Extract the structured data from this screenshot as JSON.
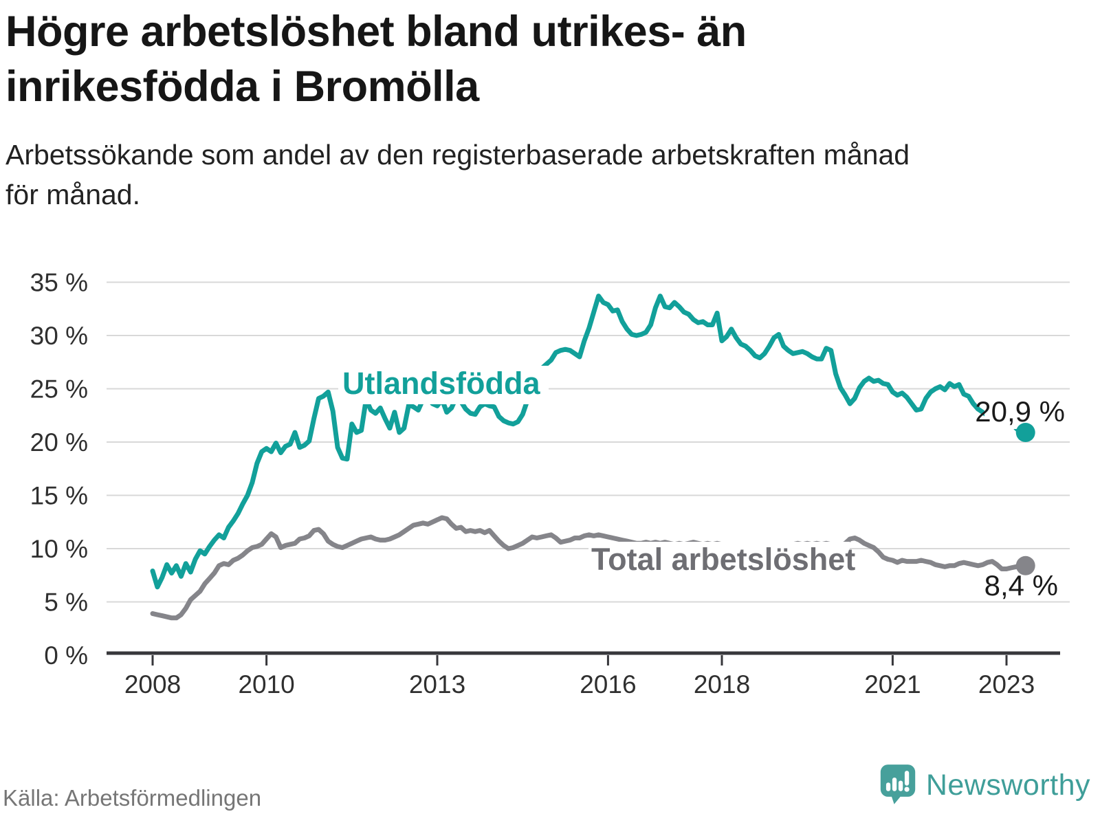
{
  "header": {
    "title_lines": [
      "Högre arbetslöshet bland utrikes- än",
      "inrikesfödda i Bromölla"
    ],
    "subtitle_lines": [
      "Arbetssökande som andel av den registerbaserade arbetskraften månad",
      "för månad."
    ]
  },
  "footer": {
    "source": "Källa: Arbetsförmedlingen",
    "brand_name": "Newsworthy",
    "brand_icon": "bar-chart-speech-bubble-icon"
  },
  "colors": {
    "teal": "#12a09a",
    "gray_line": "#85858a",
    "gray_label": "#6e6e73",
    "axis": "#37373b",
    "grid": "#d8d8d8",
    "tick_text": "#2f2f2f",
    "value_text": "#1a1a1a",
    "brand_teal": "#3f9e99",
    "background": "#ffffff"
  },
  "chart_data": {
    "type": "line",
    "title": "Högre arbetslöshet bland utrikes- än inrikesfödda i Bromölla",
    "subtitle": "Arbetssökande som andel av den registerbaserade arbetskraften månad för månad.",
    "x_unit": "month",
    "x_start_year": 2008,
    "x_end_label_values": {
      "Utlandsfödda": "20,9 %",
      "Total arbetslöshet": "8,4 %"
    },
    "x_tick_years": [
      2008,
      2010,
      2013,
      2016,
      2018,
      2021,
      2023
    ],
    "x_tick_labels": [
      "2008",
      "2010",
      "2013",
      "2016",
      "2018",
      "2021",
      "2023"
    ],
    "y_ticks": [
      0,
      5,
      10,
      15,
      20,
      25,
      30,
      35
    ],
    "y_tick_labels": [
      "0 %",
      "5 %",
      "10 %",
      "15 %",
      "20 %",
      "25 %",
      "30 %",
      "35 %"
    ],
    "ylim": [
      0,
      36.5
    ],
    "grid": true,
    "legend_position": "inline-labels",
    "series": [
      {
        "name": "Utlandsfödda",
        "color": "#12a09a",
        "end_label": "20,9 %",
        "end_value": 20.9,
        "values": [
          7.9,
          6.4,
          7.3,
          8.5,
          7.7,
          8.4,
          7.4,
          8.6,
          7.8,
          9.0,
          9.8,
          9.5,
          10.2,
          10.8,
          11.3,
          11.0,
          12.0,
          12.6,
          13.3,
          14.2,
          15.0,
          16.2,
          18.0,
          19.1,
          19.4,
          19.1,
          19.9,
          19.0,
          19.6,
          19.8,
          20.9,
          19.5,
          19.7,
          20.1,
          22.2,
          24.1,
          24.3,
          24.7,
          22.9,
          19.5,
          18.5,
          18.4,
          21.7,
          20.9,
          21.1,
          24.0,
          23.0,
          22.7,
          23.2,
          22.2,
          21.3,
          22.8,
          20.9,
          21.3,
          23.5,
          23.3,
          23.0,
          24.0,
          24.2,
          23.6,
          23.4,
          24.0,
          22.8,
          23.2,
          24.2,
          23.8,
          23.1,
          22.7,
          22.6,
          23.3,
          23.6,
          23.4,
          23.3,
          22.4,
          22.0,
          21.8,
          21.7,
          21.9,
          22.6,
          23.9,
          25.2,
          26.4,
          26.9,
          27.3,
          27.7,
          28.4,
          28.6,
          28.7,
          28.6,
          28.3,
          28.0,
          29.5,
          30.7,
          32.2,
          33.7,
          33.1,
          32.9,
          32.3,
          32.4,
          31.3,
          30.6,
          30.1,
          30.0,
          30.1,
          30.3,
          31.0,
          32.6,
          33.7,
          32.7,
          32.6,
          33.1,
          32.7,
          32.2,
          32.0,
          31.5,
          31.2,
          31.3,
          31.0,
          31.0,
          32.1,
          29.5,
          29.9,
          30.6,
          29.8,
          29.2,
          29.0,
          28.6,
          28.1,
          27.9,
          28.3,
          29.0,
          29.8,
          30.1,
          29.0,
          28.6,
          28.3,
          28.4,
          28.5,
          28.3,
          28.0,
          27.8,
          27.8,
          28.8,
          28.6,
          26.4,
          25.1,
          24.4,
          23.6,
          24.1,
          25.1,
          25.7,
          26.0,
          25.7,
          25.8,
          25.5,
          25.4,
          24.7,
          24.4,
          24.6,
          24.2,
          23.6,
          23.0,
          23.1,
          24.1,
          24.7,
          25.0,
          25.2,
          24.9,
          25.5,
          25.2,
          25.4,
          24.5,
          24.3,
          23.6,
          23.1,
          22.8,
          22.5,
          22.3,
          22.7,
          23.0,
          22.5,
          21.9,
          21.3,
          20.9
        ]
      },
      {
        "name": "Total arbetslöshet",
        "color": "#85858a",
        "end_label": "8,4 %",
        "end_value": 8.4,
        "values": [
          3.9,
          3.8,
          3.7,
          3.6,
          3.5,
          3.5,
          3.8,
          4.4,
          5.2,
          5.6,
          6.0,
          6.7,
          7.2,
          7.7,
          8.4,
          8.6,
          8.5,
          8.9,
          9.1,
          9.4,
          9.8,
          10.1,
          10.2,
          10.4,
          10.9,
          11.4,
          11.1,
          10.1,
          10.3,
          10.4,
          10.5,
          10.9,
          11.0,
          11.2,
          11.7,
          11.8,
          11.4,
          10.7,
          10.4,
          10.2,
          10.1,
          10.3,
          10.5,
          10.7,
          10.9,
          11.0,
          11.1,
          10.9,
          10.8,
          10.8,
          10.9,
          11.1,
          11.3,
          11.6,
          11.9,
          12.2,
          12.3,
          12.4,
          12.3,
          12.5,
          12.7,
          12.9,
          12.8,
          12.3,
          11.9,
          12.0,
          11.6,
          11.7,
          11.6,
          11.7,
          11.5,
          11.7,
          11.2,
          10.7,
          10.3,
          10.0,
          10.1,
          10.3,
          10.5,
          10.8,
          11.1,
          11.0,
          11.1,
          11.2,
          11.3,
          11.0,
          10.6,
          10.7,
          10.8,
          11.0,
          11.0,
          11.2,
          11.3,
          11.2,
          11.3,
          11.2,
          11.1,
          11.0,
          10.9,
          10.8,
          10.7,
          10.6,
          10.5,
          10.5,
          10.6,
          10.5,
          10.6,
          10.5,
          10.6,
          10.5,
          10.4,
          10.5,
          10.4,
          10.5,
          10.6,
          10.5,
          10.4,
          10.5,
          10.4,
          10.5,
          10.4,
          10.3,
          10.4,
          10.3,
          10.2,
          10.3,
          10.2,
          10.3,
          10.2,
          10.3,
          10.4,
          10.3,
          10.3,
          10.4,
          10.3,
          10.4,
          10.5,
          10.4,
          10.5,
          10.4,
          10.5,
          10.4,
          10.5,
          10.4,
          10.4,
          10.3,
          10.5,
          10.9,
          11.0,
          10.8,
          10.5,
          10.3,
          10.1,
          9.7,
          9.2,
          9.0,
          8.9,
          8.7,
          8.9,
          8.8,
          8.8,
          8.8,
          8.9,
          8.8,
          8.7,
          8.5,
          8.4,
          8.3,
          8.4,
          8.4,
          8.6,
          8.7,
          8.6,
          8.5,
          8.4,
          8.5,
          8.7,
          8.8,
          8.5,
          8.1,
          8.1,
          8.2,
          8.3,
          8.4
        ]
      }
    ]
  }
}
